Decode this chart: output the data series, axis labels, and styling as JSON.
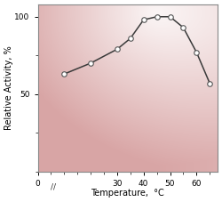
{
  "x_data": [
    10,
    20,
    30,
    35,
    40,
    45,
    50,
    55,
    60,
    65
  ],
  "y_data": [
    63,
    70,
    79,
    86,
    98,
    100,
    100,
    93,
    77,
    57
  ],
  "xlim": [
    0,
    68
  ],
  "ylim": [
    0,
    108
  ],
  "xticks": [
    0,
    30,
    40,
    50,
    60
  ],
  "yticks": [
    50,
    100
  ],
  "xlabel": "Temperature,  °C",
  "ylabel": "Relative Activity, %",
  "line_color": "#3a3a3a",
  "marker_facecolor": "white",
  "marker_edgecolor": "#555555",
  "pink_color": [
    0.85,
    0.65,
    0.65
  ],
  "white_color": [
    1.0,
    1.0,
    1.0
  ],
  "figsize": [
    2.5,
    2.27
  ],
  "dpi": 100
}
